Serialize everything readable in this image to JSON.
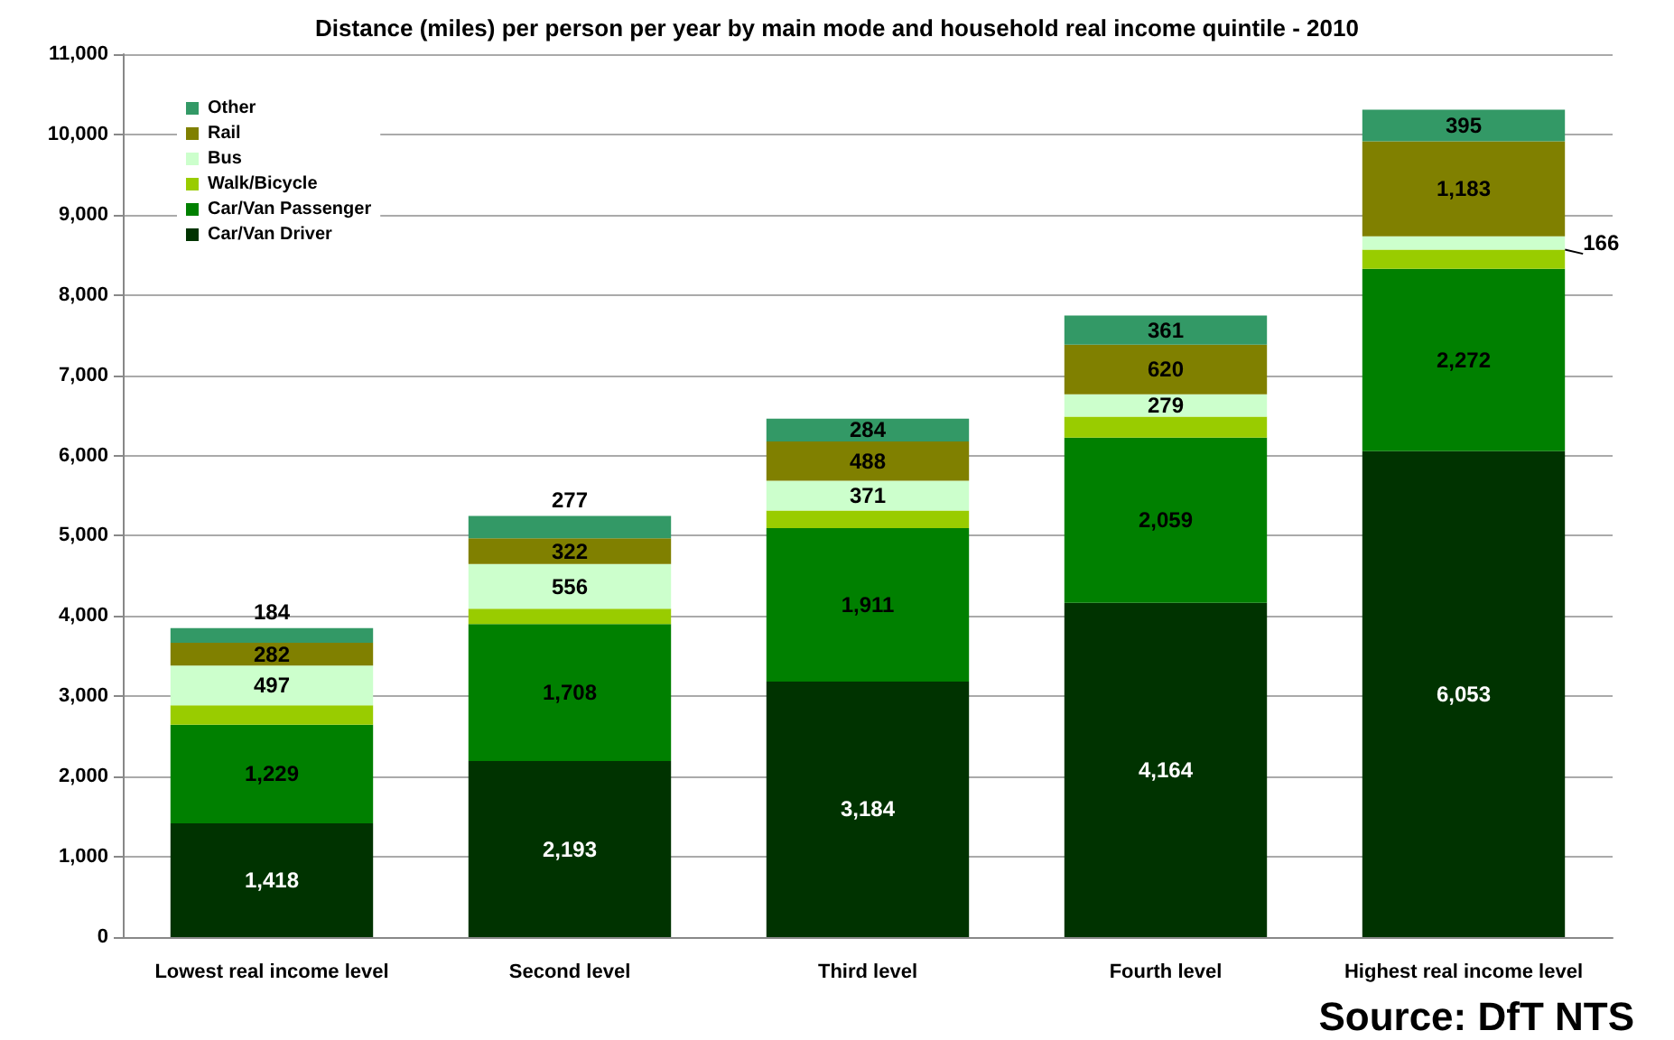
{
  "chart_data": {
    "type": "bar",
    "stacked": true,
    "title": "Distance (miles) per person per year by main mode and household real income quintile - 2010",
    "categories": [
      "Lowest real income level",
      "Second level",
      "Third level",
      "Fourth level",
      "Highest real income level"
    ],
    "series": [
      {
        "name": "Car/Van Driver",
        "color": "#003300",
        "values": [
          1418,
          2193,
          3184,
          4164,
          6053
        ],
        "value_labels": [
          "1,418",
          "2,193",
          "3,184",
          "4,164",
          "6,053"
        ]
      },
      {
        "name": "Car/Van Passenger",
        "color": "#008000",
        "values": [
          1229,
          1708,
          1911,
          2059,
          2272
        ],
        "value_labels": [
          "1,229",
          "1,708",
          "1,911",
          "2,059",
          "2,272"
        ]
      },
      {
        "name": "Walk/Bicycle",
        "color": "#99cc00",
        "values": [
          240,
          190,
          220,
          260,
          240
        ],
        "value_labels": [
          null,
          null,
          null,
          null,
          null
        ]
      },
      {
        "name": "Bus",
        "color": "#ccffcc",
        "values": [
          497,
          556,
          371,
          279,
          166
        ],
        "value_labels": [
          "497",
          "556",
          "371",
          "279",
          "166"
        ]
      },
      {
        "name": "Rail",
        "color": "#808000",
        "values": [
          282,
          322,
          488,
          620,
          1183
        ],
        "value_labels": [
          "282",
          "322",
          "488",
          "620",
          "1,183"
        ]
      },
      {
        "name": "Other",
        "color": "#339966",
        "values": [
          184,
          277,
          284,
          361,
          395
        ],
        "value_labels": [
          "184",
          "277",
          "284",
          "361",
          "395"
        ]
      }
    ],
    "ylim": [
      0,
      11000
    ],
    "yticks": [
      {
        "value": 0,
        "label": "0"
      },
      {
        "value": 1000,
        "label": "1,000"
      },
      {
        "value": 2000,
        "label": "2,000"
      },
      {
        "value": 3000,
        "label": "3,000"
      },
      {
        "value": 4000,
        "label": "4,000"
      },
      {
        "value": 5000,
        "label": "5,000"
      },
      {
        "value": 6000,
        "label": "6,000"
      },
      {
        "value": 7000,
        "label": "7,000"
      },
      {
        "value": 8000,
        "label": "8,000"
      },
      {
        "value": 9000,
        "label": "9,000"
      },
      {
        "value": 10000,
        "label": "10,000"
      },
      {
        "value": 11000,
        "label": "11,000"
      }
    ],
    "grid": "y",
    "legend": "top left",
    "annotations": [
      "Source: DfT NTS"
    ]
  }
}
